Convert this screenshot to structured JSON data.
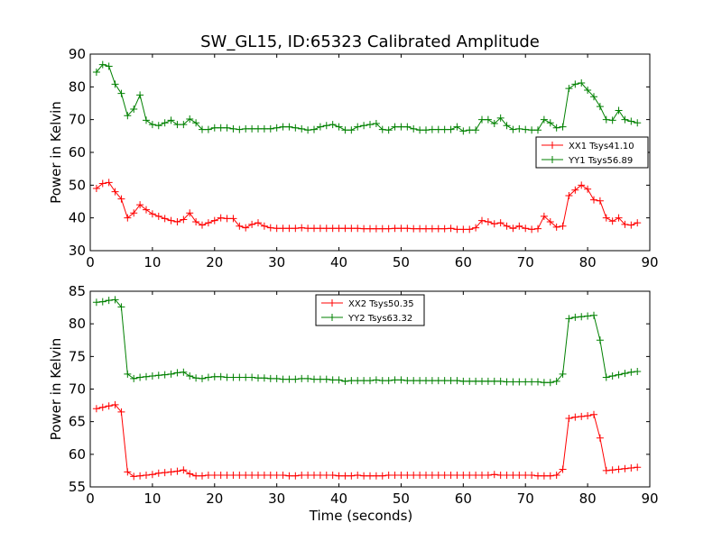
{
  "figure": {
    "title": "SW_GL15, ID:65323 Calibrated Amplitude"
  },
  "colors": {
    "red": "#ff0000",
    "green": "#008000",
    "axes": "#000000",
    "background": "#ffffff"
  },
  "chart_data": [
    {
      "type": "line",
      "title": "SW_GL15, ID:65323 Calibrated Amplitude",
      "xlabel": "",
      "ylabel": "Power in Kelvin",
      "xlim": [
        0,
        90
      ],
      "ylim": [
        30,
        90
      ],
      "xticks": [
        0,
        10,
        20,
        30,
        40,
        50,
        60,
        70,
        80,
        90
      ],
      "yticks": [
        30,
        40,
        50,
        60,
        70,
        80,
        90
      ],
      "grid": false,
      "legend_position": "right",
      "x": [
        1,
        2,
        3,
        4,
        5,
        6,
        7,
        8,
        9,
        10,
        11,
        12,
        13,
        14,
        15,
        16,
        17,
        18,
        19,
        20,
        21,
        22,
        23,
        24,
        25,
        26,
        27,
        28,
        29,
        30,
        31,
        32,
        33,
        34,
        35,
        36,
        37,
        38,
        39,
        40,
        41,
        42,
        43,
        44,
        45,
        46,
        47,
        48,
        49,
        50,
        51,
        52,
        53,
        54,
        55,
        56,
        57,
        58,
        59,
        60,
        61,
        62,
        63,
        64,
        65,
        66,
        67,
        68,
        69,
        70,
        71,
        72,
        73,
        74,
        75,
        76,
        77,
        78,
        79,
        80,
        81,
        82,
        83,
        84,
        85,
        86,
        87,
        88
      ],
      "series": [
        {
          "name": "XX1 Tsys41.10",
          "color": "#ff0000",
          "values": [
            49,
            50.5,
            50.8,
            48,
            45.8,
            40,
            41.5,
            44,
            42.5,
            41.2,
            40.5,
            39.8,
            39.2,
            38.8,
            39.5,
            41.5,
            38.8,
            37.8,
            38.5,
            39.2,
            40,
            39.8,
            39.8,
            37.5,
            37,
            38,
            38.5,
            37.5,
            37,
            36.8,
            36.8,
            36.8,
            36.8,
            37,
            36.8,
            36.8,
            36.8,
            36.8,
            36.8,
            36.8,
            36.8,
            36.8,
            36.8,
            36.7,
            36.7,
            36.7,
            36.7,
            36.7,
            36.8,
            36.8,
            36.8,
            36.7,
            36.7,
            36.7,
            36.7,
            36.7,
            36.7,
            36.8,
            36.5,
            36.5,
            36.5,
            37,
            39.2,
            38.8,
            38.2,
            38.5,
            37.5,
            36.8,
            37.5,
            36.8,
            36.5,
            36.7,
            40.5,
            38.8,
            37.2,
            37.5,
            46.8,
            48.5,
            50,
            48.8,
            45.5,
            45.2,
            40,
            39,
            40,
            38,
            37.8,
            38.5
          ]
        },
        {
          "name": "YY1 Tsys56.89",
          "color": "#008000",
          "values": [
            84.5,
            86.8,
            86.3,
            80.8,
            78,
            71.2,
            73.2,
            77.5,
            69.8,
            68.5,
            68.2,
            69,
            69.8,
            68.5,
            68.5,
            70.2,
            69,
            67,
            67,
            67.5,
            67.5,
            67.5,
            67.2,
            67,
            67.2,
            67.2,
            67.2,
            67.2,
            67.2,
            67.5,
            67.8,
            67.8,
            67.5,
            67.2,
            66.8,
            67,
            67.8,
            68.2,
            68.5,
            67.8,
            66.8,
            66.8,
            67.8,
            68.2,
            68.5,
            68.8,
            67,
            66.8,
            67.8,
            67.8,
            67.8,
            67.2,
            66.8,
            66.8,
            67,
            67,
            67,
            67,
            67.8,
            66.5,
            66.8,
            66.8,
            70,
            70,
            68.8,
            70.5,
            68.2,
            67,
            67.2,
            67,
            66.8,
            66.8,
            70,
            69,
            67.5,
            67.8,
            79.5,
            80.8,
            81.2,
            79,
            77,
            74,
            70,
            69.8,
            72.8,
            70,
            69.5,
            69
          ]
        }
      ]
    },
    {
      "type": "line",
      "title": "",
      "xlabel": "Time (seconds)",
      "ylabel": "Power in Kelvin",
      "xlim": [
        0,
        90
      ],
      "ylim": [
        55,
        85
      ],
      "xticks": [
        0,
        10,
        20,
        30,
        40,
        50,
        60,
        70,
        80,
        90
      ],
      "yticks": [
        55,
        60,
        65,
        70,
        75,
        80,
        85
      ],
      "grid": false,
      "legend_position": "top-center",
      "x": [
        1,
        2,
        3,
        4,
        5,
        6,
        7,
        8,
        9,
        10,
        11,
        12,
        13,
        14,
        15,
        16,
        17,
        18,
        19,
        20,
        21,
        22,
        23,
        24,
        25,
        26,
        27,
        28,
        29,
        30,
        31,
        32,
        33,
        34,
        35,
        36,
        37,
        38,
        39,
        40,
        41,
        42,
        43,
        44,
        45,
        46,
        47,
        48,
        49,
        50,
        51,
        52,
        53,
        54,
        55,
        56,
        57,
        58,
        59,
        60,
        61,
        62,
        63,
        64,
        65,
        66,
        67,
        68,
        69,
        70,
        71,
        72,
        73,
        74,
        75,
        76,
        77,
        78,
        79,
        80,
        81,
        82,
        83,
        84,
        85,
        86,
        87,
        88
      ],
      "series": [
        {
          "name": "XX2 Tsys50.35",
          "color": "#ff0000",
          "values": [
            67,
            67.2,
            67.4,
            67.6,
            66.5,
            57.3,
            56.6,
            56.7,
            56.8,
            56.9,
            57.1,
            57.2,
            57.3,
            57.4,
            57.6,
            57,
            56.7,
            56.7,
            56.8,
            56.8,
            56.8,
            56.8,
            56.8,
            56.8,
            56.8,
            56.8,
            56.8,
            56.8,
            56.8,
            56.8,
            56.8,
            56.7,
            56.7,
            56.8,
            56.8,
            56.8,
            56.8,
            56.8,
            56.8,
            56.7,
            56.7,
            56.7,
            56.8,
            56.7,
            56.7,
            56.7,
            56.7,
            56.8,
            56.8,
            56.8,
            56.8,
            56.8,
            56.8,
            56.8,
            56.8,
            56.8,
            56.8,
            56.8,
            56.8,
            56.8,
            56.8,
            56.8,
            56.8,
            56.8,
            56.9,
            56.8,
            56.8,
            56.8,
            56.8,
            56.8,
            56.8,
            56.7,
            56.7,
            56.7,
            56.8,
            57.7,
            65.5,
            65.7,
            65.8,
            65.9,
            66.1,
            62.5,
            57.5,
            57.6,
            57.7,
            57.8,
            57.9,
            58
          ]
        },
        {
          "name": "YY2 Tsys63.32",
          "color": "#008000",
          "values": [
            83.3,
            83.4,
            83.6,
            83.7,
            82.6,
            72.3,
            71.6,
            71.8,
            71.9,
            72,
            72.1,
            72.2,
            72.3,
            72.5,
            72.6,
            72,
            71.7,
            71.6,
            71.8,
            71.9,
            71.9,
            71.8,
            71.8,
            71.8,
            71.8,
            71.8,
            71.7,
            71.7,
            71.6,
            71.6,
            71.5,
            71.5,
            71.5,
            71.6,
            71.6,
            71.5,
            71.5,
            71.5,
            71.4,
            71.4,
            71.2,
            71.3,
            71.3,
            71.3,
            71.3,
            71.4,
            71.3,
            71.3,
            71.4,
            71.4,
            71.3,
            71.3,
            71.3,
            71.3,
            71.3,
            71.3,
            71.3,
            71.3,
            71.3,
            71.2,
            71.2,
            71.2,
            71.2,
            71.2,
            71.2,
            71.2,
            71.1,
            71.1,
            71.1,
            71.1,
            71.1,
            71.1,
            71,
            71,
            71.2,
            72.3,
            80.8,
            81,
            81.1,
            81.2,
            81.3,
            77.5,
            71.8,
            72,
            72.2,
            72.4,
            72.6,
            72.7
          ]
        }
      ]
    }
  ]
}
